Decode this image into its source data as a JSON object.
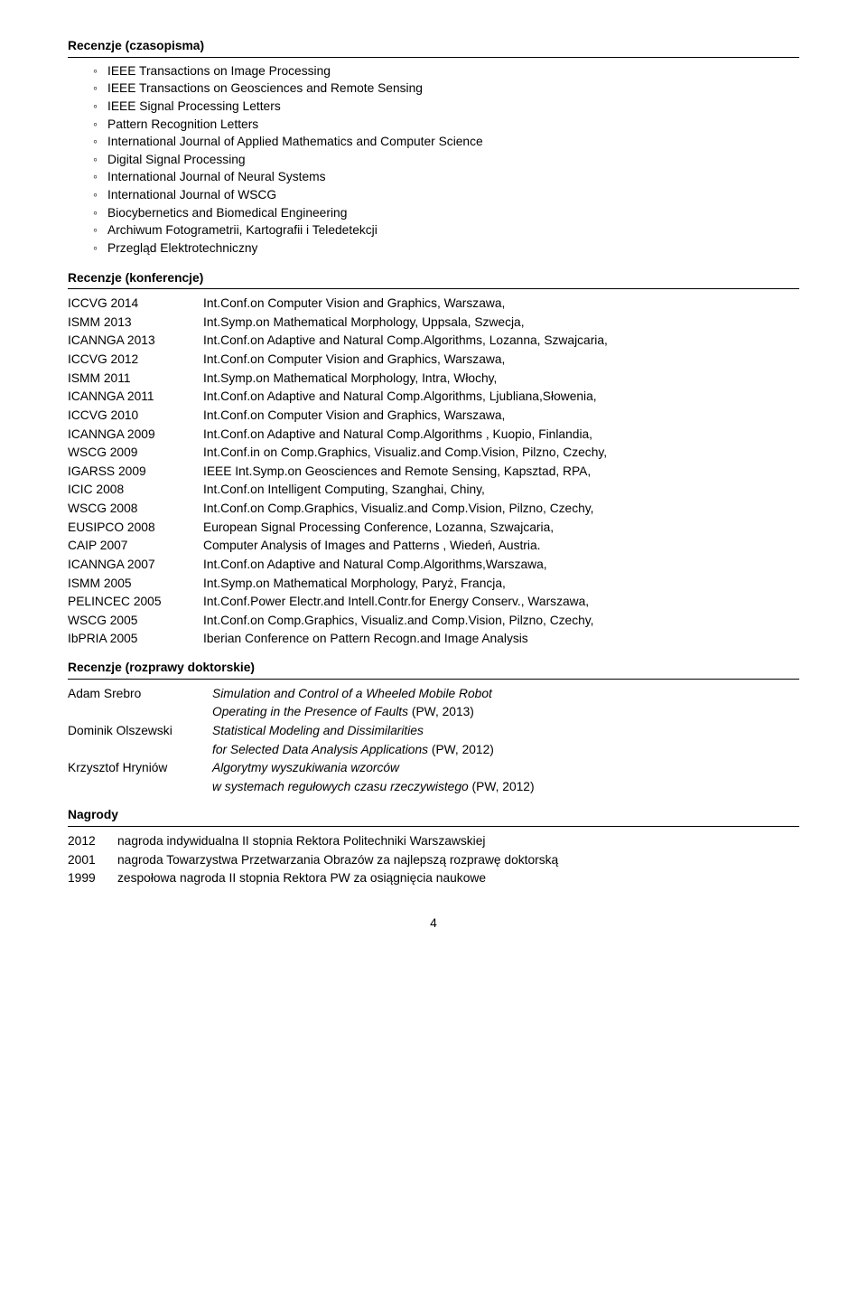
{
  "sections": {
    "journals": {
      "title": "Recenzje (czasopisma)",
      "items": [
        "IEEE Transactions on Image Processing",
        "IEEE Transactions on Geosciences and Remote Sensing",
        "IEEE Signal Processing Letters",
        "Pattern Recognition Letters",
        "International Journal of Applied Mathematics and Computer Science",
        "Digital Signal Processing",
        "International Journal of Neural Systems",
        "International Journal of WSCG",
        "Biocybernetics and Biomedical Engineering",
        "Archiwum Fotogrametrii, Kartografii i Teledetekcji",
        "Przegląd Elektrotechniczny"
      ]
    },
    "conferences": {
      "title": "Recenzje (konferencje)",
      "rows": [
        {
          "label": "ICCVG 2014",
          "text": "Int.Conf.on Computer Vision and Graphics, Warszawa,"
        },
        {
          "label": "ISMM 2013",
          "text": "Int.Symp.on Mathematical Morphology, Uppsala, Szwecja,"
        },
        {
          "label": "ICANNGA 2013",
          "text": "Int.Conf.on Adaptive and Natural Comp.Algorithms, Lozanna, Szwajcaria,"
        },
        {
          "label": "ICCVG 2012",
          "text": "Int.Conf.on Computer Vision and Graphics, Warszawa,"
        },
        {
          "label": "ISMM 2011",
          "text": "Int.Symp.on Mathematical Morphology, Intra, Włochy,"
        },
        {
          "label": "ICANNGA 2011",
          "text": "Int.Conf.on Adaptive and Natural Comp.Algorithms, Ljubliana,Słowenia,"
        },
        {
          "label": "ICCVG 2010",
          "text": "Int.Conf.on Computer Vision and Graphics, Warszawa,"
        },
        {
          "label": "ICANNGA 2009",
          "text": "Int.Conf.on Adaptive and Natural Comp.Algorithms , Kuopio, Finlandia,"
        },
        {
          "label": "WSCG 2009",
          "text": "Int.Conf.in on Comp.Graphics, Visualiz.and Comp.Vision, Pilzno, Czechy,"
        },
        {
          "label": "IGARSS 2009",
          "text": "IEEE Int.Symp.on Geosciences and Remote Sensing, Kapsztad, RPA,"
        },
        {
          "label": "ICIC 2008",
          "text": "Int.Conf.on Intelligent Computing, Szanghai, Chiny,"
        },
        {
          "label": "WSCG 2008",
          "text": "Int.Conf.on Comp.Graphics, Visualiz.and Comp.Vision, Pilzno, Czechy,"
        },
        {
          "label": "EUSIPCO 2008",
          "text": "European Signal Processing Conference, Lozanna, Szwajcaria,"
        },
        {
          "label": "CAIP 2007",
          "text": "Computer Analysis of Images and Patterns , Wiedeń, Austria."
        },
        {
          "label": "ICANNGA 2007",
          "text": "Int.Conf.on Adaptive and Natural Comp.Algorithms,Warszawa,"
        },
        {
          "label": "ISMM 2005",
          "text": "Int.Symp.on Mathematical Morphology, Paryż, Francja,"
        },
        {
          "label": "PELINCEC 2005",
          "text": "Int.Conf.Power Electr.and Intell.Contr.for Energy Conserv., Warszawa,"
        },
        {
          "label": "WSCG 2005",
          "text": "Int.Conf.on Comp.Graphics, Visualiz.and Comp.Vision, Pilzno, Czechy,"
        },
        {
          "label": "IbPRIA 2005",
          "text": "Iberian Conference on Pattern Recogn.and Image Analysis"
        }
      ]
    },
    "phd": {
      "title": "Recenzje (rozprawy doktorskie)",
      "rows": [
        {
          "label": "Adam Srebro",
          "text_italic": "Simulation and Control of a Wheeled Mobile Robot"
        },
        {
          "label": "",
          "text_mixed": {
            "italic": "Operating in the Presence of Faults",
            "tail": " (PW, 2013)"
          }
        },
        {
          "label": "Dominik Olszewski",
          "text_italic": "Statistical Modeling and Dissimilarities"
        },
        {
          "label": "",
          "text_mixed": {
            "italic": "for Selected Data Analysis Applications",
            "tail": " (PW, 2012)"
          }
        },
        {
          "label": "Krzysztof Hryniów",
          "text_italic": "Algorytmy wyszukiwania wzorców"
        },
        {
          "label": "",
          "text_mixed": {
            "italic": "w systemach regułowych czasu rzeczywistego",
            "tail": " (PW, 2012)"
          }
        }
      ]
    },
    "awards": {
      "title": "Nagrody",
      "rows": [
        {
          "label": "2012",
          "text": "nagroda indywidualna II stopnia Rektora Politechniki Warszawskiej"
        },
        {
          "label": "2001",
          "text": "nagroda Towarzystwa Przetwarzania Obrazów za najlepszą rozprawę doktorską"
        },
        {
          "label": "1999",
          "text": "zespołowa nagroda II stopnia Rektora PW za osiągnięcia naukowe"
        }
      ]
    }
  },
  "page_number": "4",
  "style": {
    "text_color": "#000000",
    "background_color": "#ffffff",
    "rule_color": "#000000",
    "font_size_pt": 10.5,
    "label_col_w_conf": 150,
    "label_col_w_phd": 160,
    "label_col_w_awards": 55
  }
}
